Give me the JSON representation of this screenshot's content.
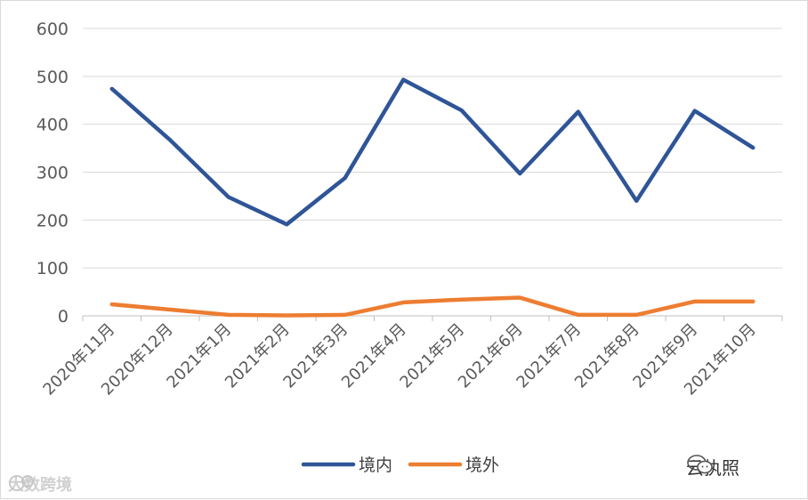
{
  "chart_data": {
    "type": "line",
    "categories": [
      "2020年11月",
      "2020年12月",
      "2021年1月",
      "2021年2月",
      "2021年3月",
      "2021年4月",
      "2021年5月",
      "2021年6月",
      "2021年7月",
      "2021年8月",
      "2021年9月",
      "2021年10月"
    ],
    "series": [
      {
        "name": "境内",
        "color": "#2F5597",
        "values": [
          474,
          367,
          248,
          191,
          288,
          493,
          429,
          297,
          426,
          240,
          428,
          351
        ]
      },
      {
        "name": "境外",
        "color": "#ED7D31",
        "values": [
          24,
          13,
          2,
          1,
          2,
          28,
          34,
          38,
          2,
          2,
          30,
          30
        ]
      }
    ],
    "ylim": [
      0,
      600
    ],
    "yticks": [
      0,
      100,
      200,
      300,
      400,
      500,
      600
    ],
    "grid": true,
    "legend": "bottom",
    "title": "",
    "xlabel": "",
    "ylabel": ""
  },
  "watermarks": {
    "left_text": "大数跨境",
    "right_text": "云执照"
  }
}
